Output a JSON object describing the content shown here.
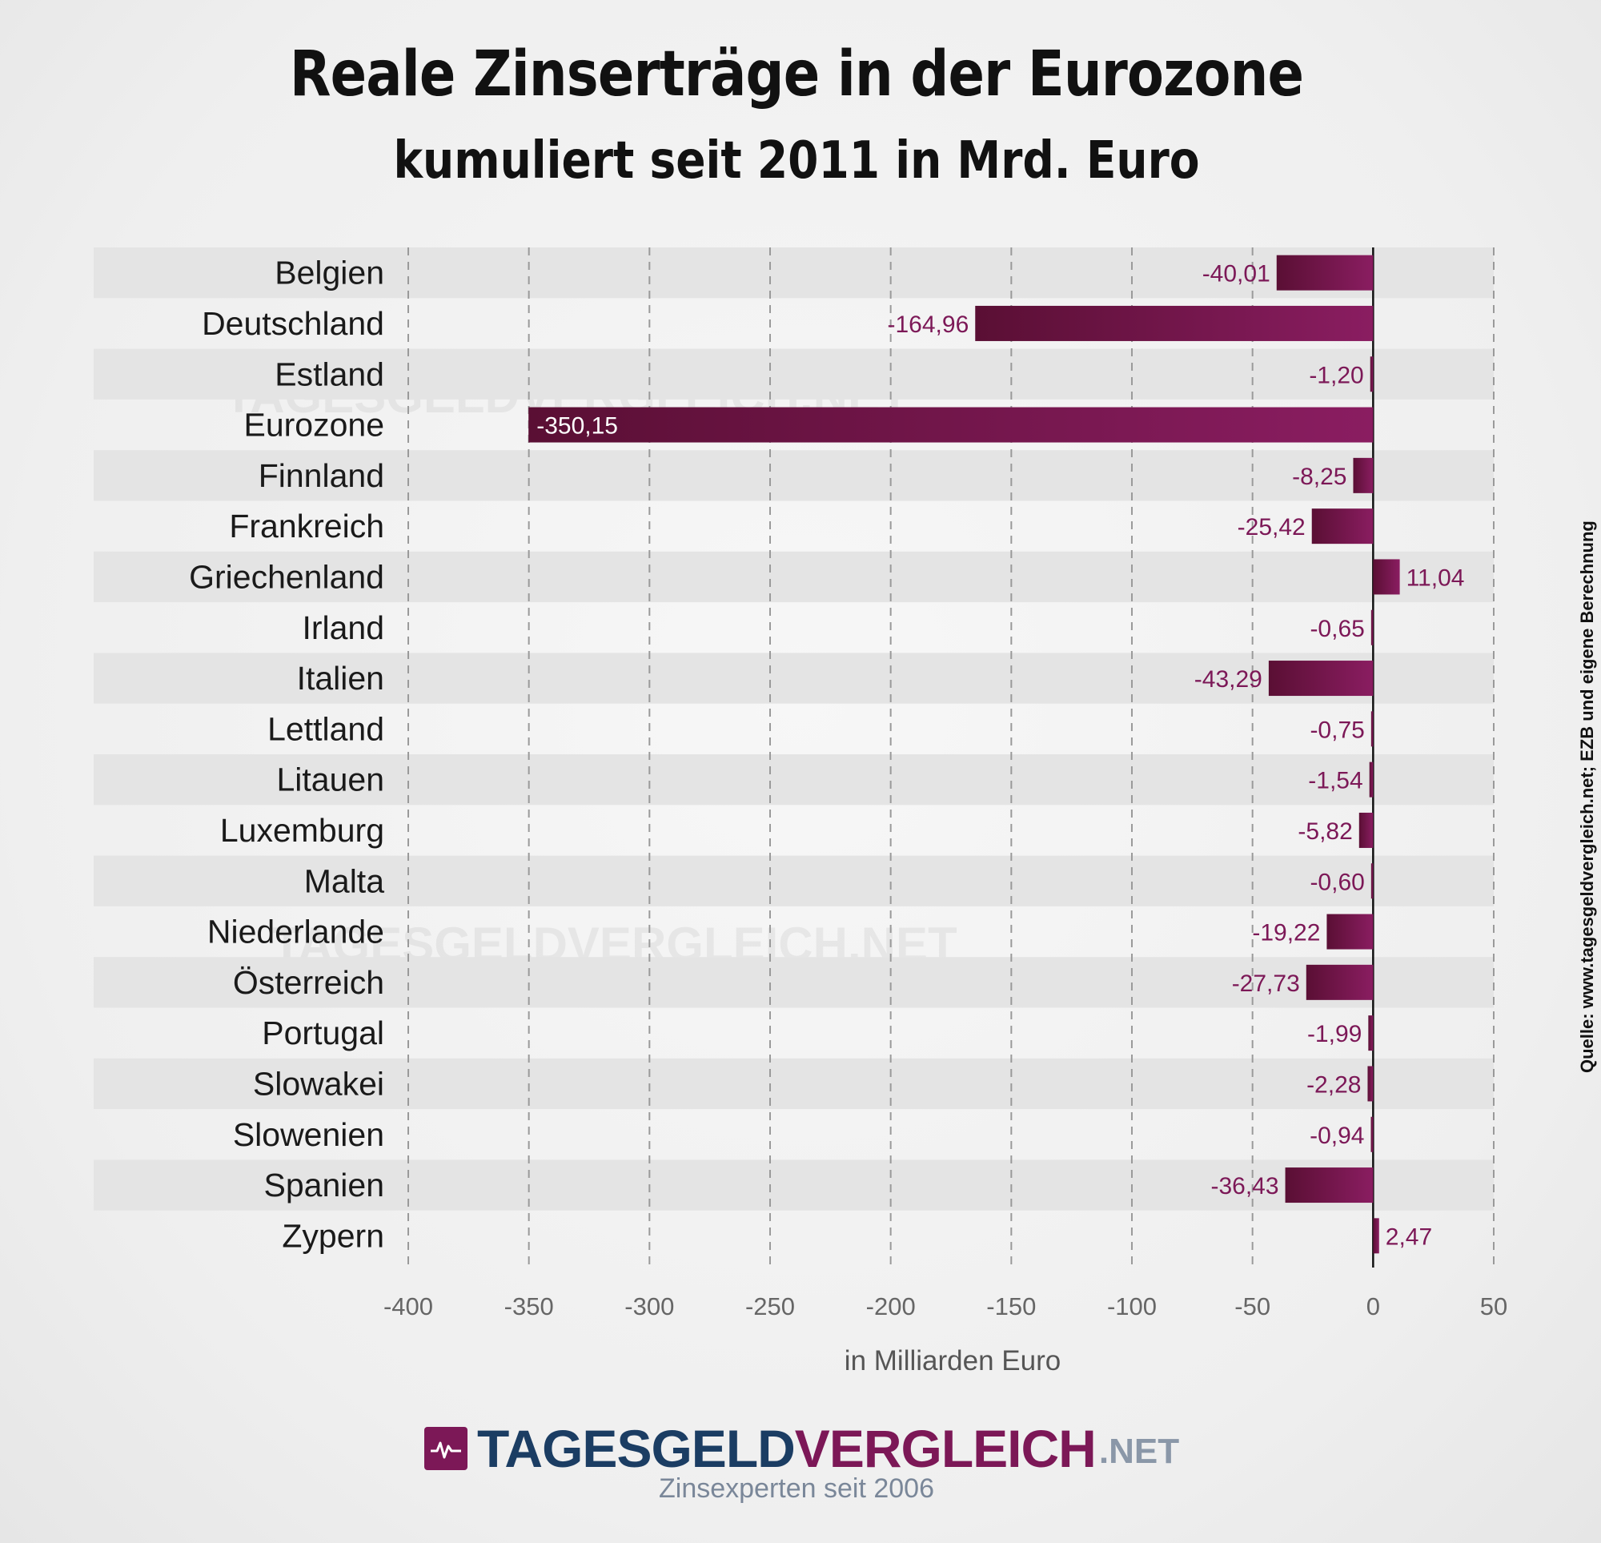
{
  "header": {
    "title": "Reale Zinserträge in der Eurozone",
    "subtitle": "kumuliert seit 2011 in Mrd. Euro"
  },
  "chart_data": {
    "type": "bar",
    "orientation": "horizontal",
    "title": "Reale Zinserträge in der Eurozone",
    "subtitle": "kumuliert seit 2011 in Mrd. Euro",
    "xlabel": "in Milliarden Euro",
    "ylabel": "",
    "xlim": [
      -400,
      50
    ],
    "xticks": [
      -400,
      -350,
      -300,
      -250,
      -200,
      -150,
      -100,
      -50,
      0,
      50
    ],
    "grid": "vertical dashed",
    "categories": [
      "Belgien",
      "Deutschland",
      "Estland",
      "Eurozone",
      "Finnland",
      "Frankreich",
      "Griechenland",
      "Irland",
      "Italien",
      "Lettland",
      "Litauen",
      "Luxemburg",
      "Malta",
      "Niederlande",
      "Österreich",
      "Portugal",
      "Slowakei",
      "Slowenien",
      "Spanien",
      "Zypern"
    ],
    "values": [
      -40.01,
      -164.96,
      -1.2,
      -350.15,
      -8.25,
      -25.42,
      11.04,
      -0.65,
      -43.29,
      -0.75,
      -1.54,
      -5.82,
      -0.6,
      -19.22,
      -27.73,
      -1.99,
      -2.28,
      -0.94,
      -36.43,
      2.47
    ],
    "value_labels": [
      "-40,01",
      "-164,96",
      "-1,20",
      "-350,15",
      "-8,25",
      "-25,42",
      "11,04",
      "-0,65",
      "-43,29",
      "-0,75",
      "-1,54",
      "-5,82",
      "-0,60",
      "-19,22",
      "-27,73",
      "-1,99",
      "-2,28",
      "-0,94",
      "-36,43",
      "2,47"
    ],
    "xtick_labels": [
      "-400",
      "-350",
      "-300",
      "-250",
      "-200",
      "-150",
      "-100",
      "-50",
      "0",
      "50"
    ]
  },
  "source_note": "Quelle: www.tagesgeldvergleich.net; EZB und eigene Berechnung",
  "branding": {
    "logo_part1": "TAGESGELD",
    "logo_part2": "VERGLEICH",
    "logo_suffix": ".NET",
    "tagline": "Zinsexperten seit 2006",
    "watermark": "TAGESGELDVERGLEICH.NET"
  },
  "colors": {
    "bar_dark": "#5c1036",
    "bar_light": "#891d60",
    "label": "#7c1857",
    "stripe": "#e4e4e4"
  }
}
